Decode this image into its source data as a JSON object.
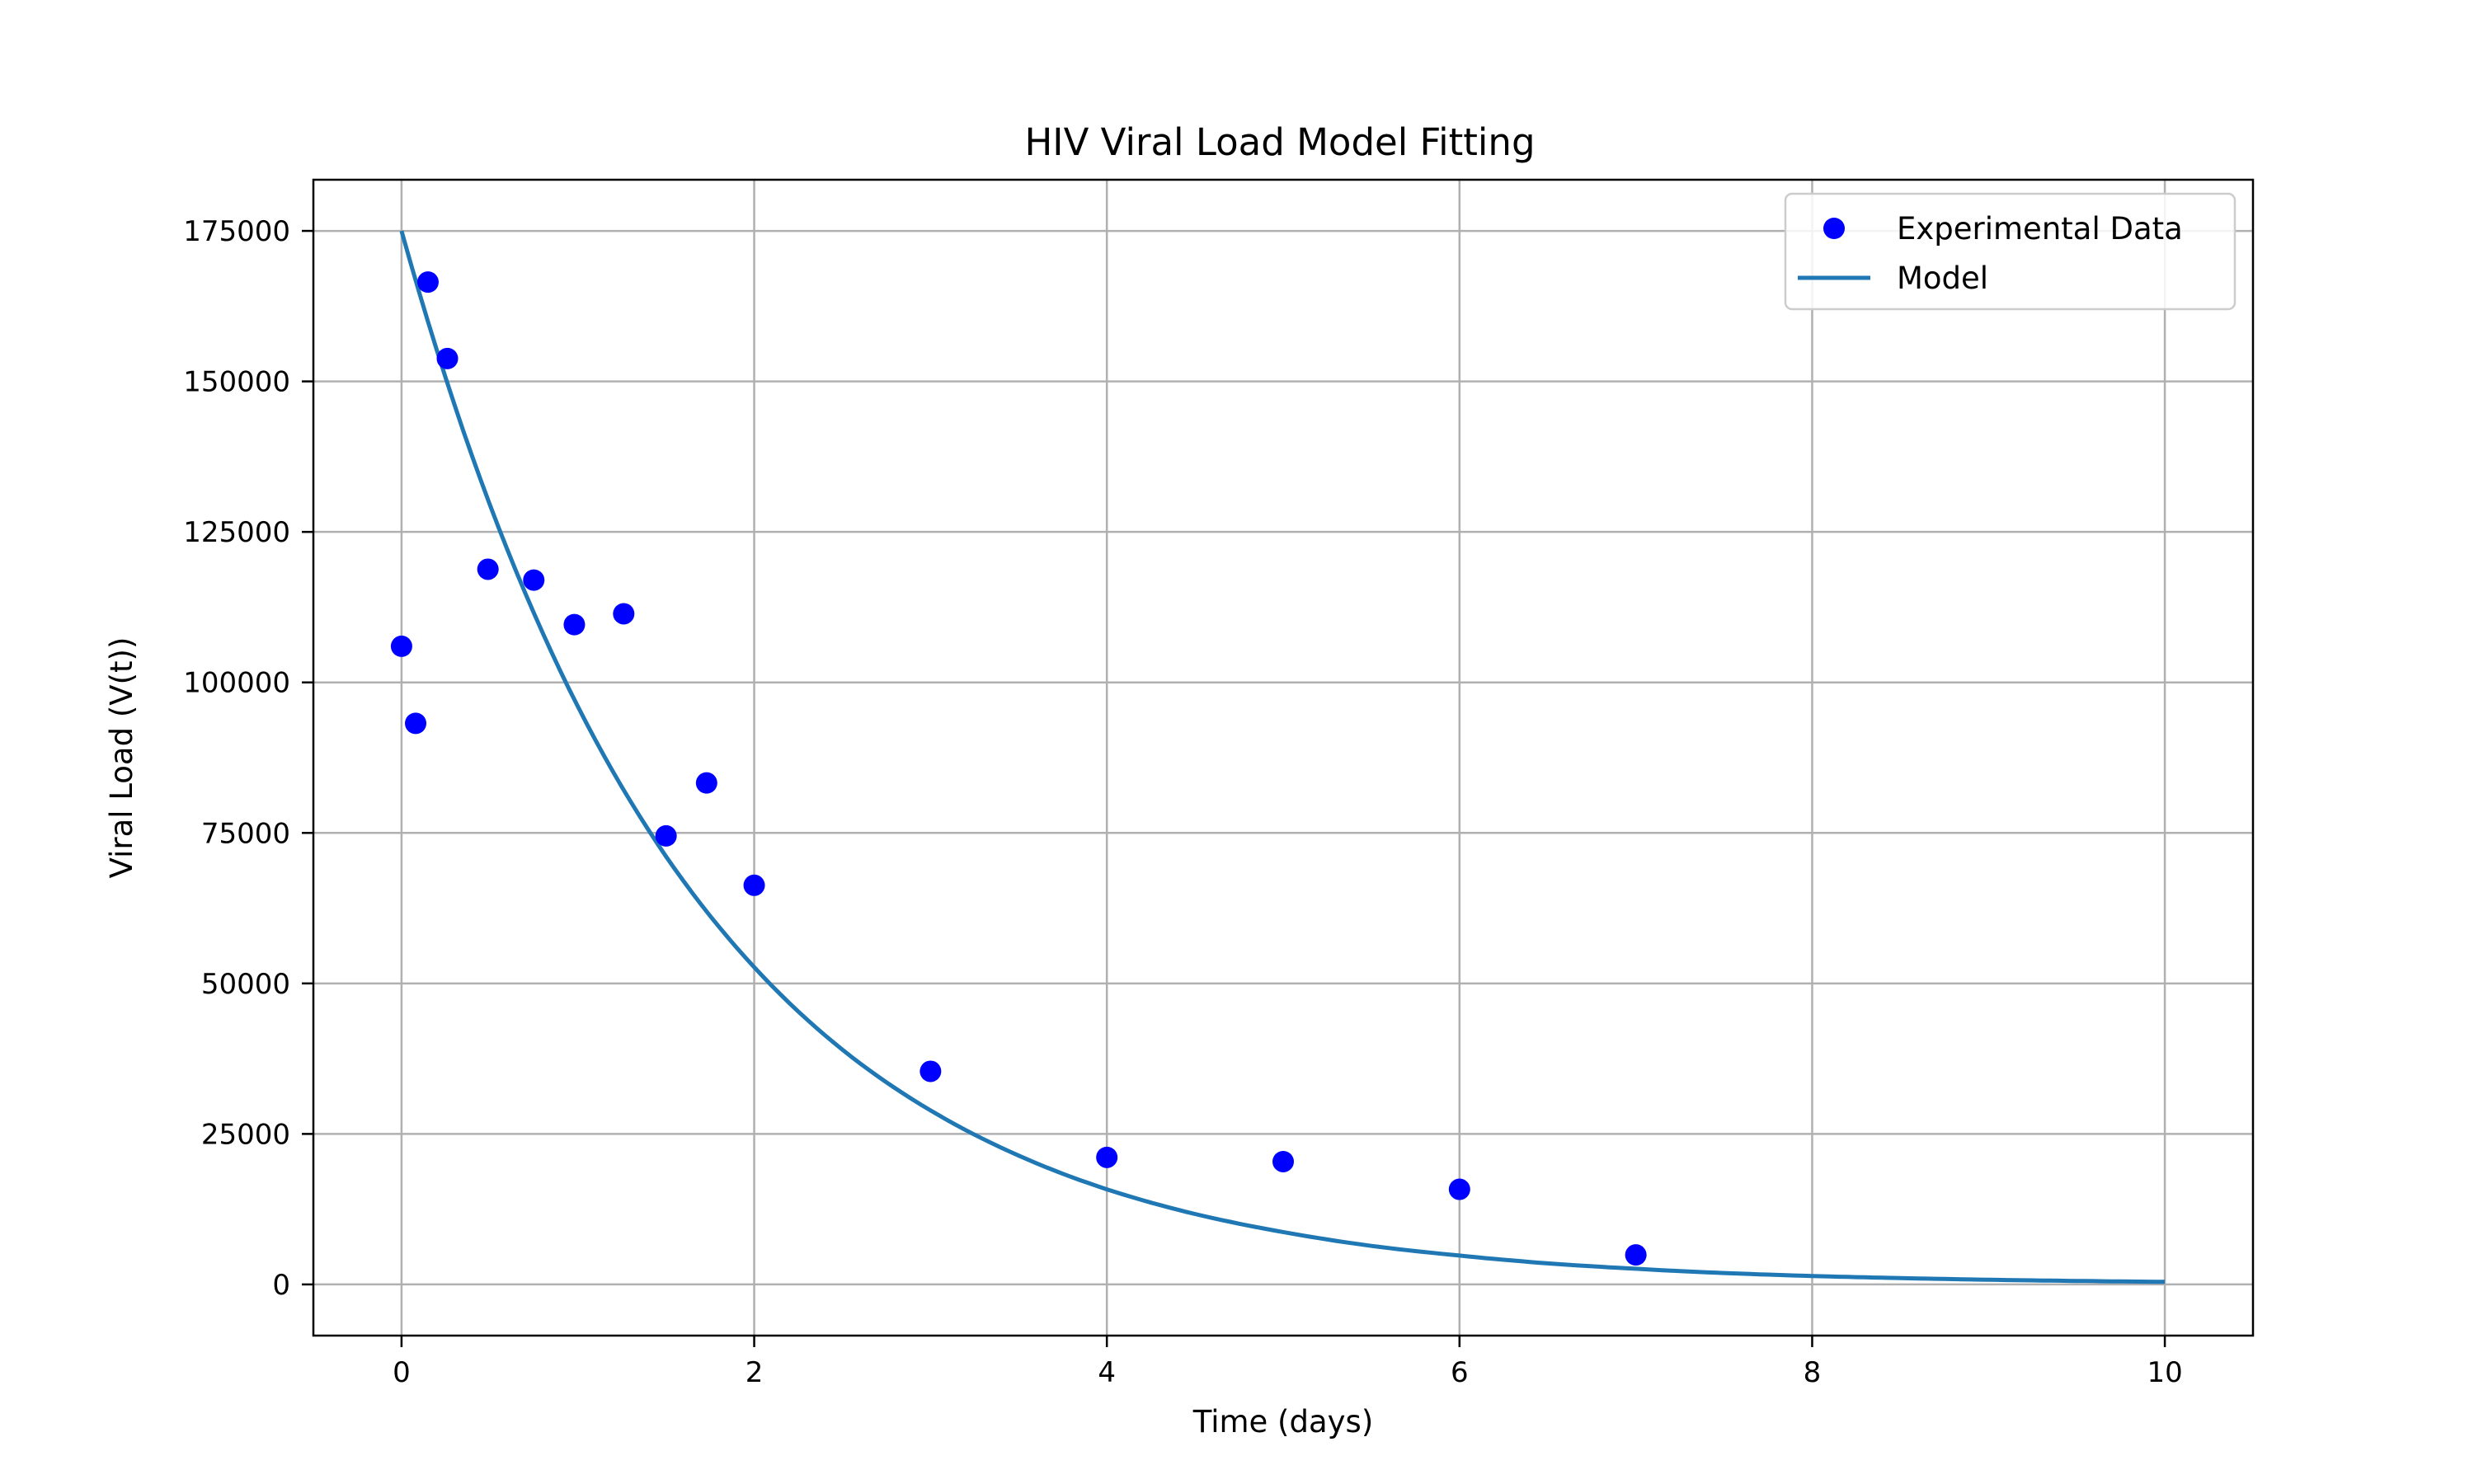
{
  "chart_data": {
    "type": "scatter",
    "title": "HIV Viral Load Model Fitting",
    "xlabel": "Time (days)",
    "ylabel": "Viral Load (V(t))",
    "xlim": [
      -0.5,
      10.5
    ],
    "ylim": [
      -8500,
      183500
    ],
    "xticks": [
      0,
      2,
      4,
      6,
      8,
      10
    ],
    "yticks": [
      0,
      25000,
      50000,
      75000,
      100000,
      125000,
      150000,
      175000
    ],
    "grid": true,
    "legend_position": "top-right",
    "series": [
      {
        "name": "Experimental Data",
        "kind": "scatter",
        "color": "#0000ff",
        "points": [
          {
            "x": 0.0,
            "y": 106000
          },
          {
            "x": 0.08,
            "y": 93200
          },
          {
            "x": 0.15,
            "y": 166500
          },
          {
            "x": 0.26,
            "y": 153800
          },
          {
            "x": 0.49,
            "y": 118800
          },
          {
            "x": 0.75,
            "y": 117000
          },
          {
            "x": 0.98,
            "y": 109600
          },
          {
            "x": 1.26,
            "y": 111400
          },
          {
            "x": 1.5,
            "y": 74500
          },
          {
            "x": 1.73,
            "y": 83300
          },
          {
            "x": 2.0,
            "y": 66300
          },
          {
            "x": 3.0,
            "y": 35400
          },
          {
            "x": 4.0,
            "y": 21100
          },
          {
            "x": 5.0,
            "y": 20400
          },
          {
            "x": 6.0,
            "y": 15800
          },
          {
            "x": 7.0,
            "y": 4900
          }
        ]
      },
      {
        "name": "Model",
        "kind": "line",
        "color": "#1f77b4",
        "points": [
          {
            "x": 0,
            "y": 175000
          },
          {
            "x": 0.5,
            "y": 129600
          },
          {
            "x": 1,
            "y": 96000
          },
          {
            "x": 1.5,
            "y": 71100
          },
          {
            "x": 2,
            "y": 52700
          },
          {
            "x": 2.5,
            "y": 39000
          },
          {
            "x": 3,
            "y": 28900
          },
          {
            "x": 3.5,
            "y": 21400
          },
          {
            "x": 4,
            "y": 15800
          },
          {
            "x": 4.5,
            "y": 11700
          },
          {
            "x": 5,
            "y": 8700
          },
          {
            "x": 5.5,
            "y": 6400
          },
          {
            "x": 6,
            "y": 4800
          },
          {
            "x": 6.5,
            "y": 3500
          },
          {
            "x": 7,
            "y": 2600
          },
          {
            "x": 7.5,
            "y": 1900
          },
          {
            "x": 8,
            "y": 1400
          },
          {
            "x": 8.5,
            "y": 1050
          },
          {
            "x": 9,
            "y": 780
          },
          {
            "x": 9.5,
            "y": 580
          },
          {
            "x": 10,
            "y": 430
          }
        ]
      }
    ]
  }
}
